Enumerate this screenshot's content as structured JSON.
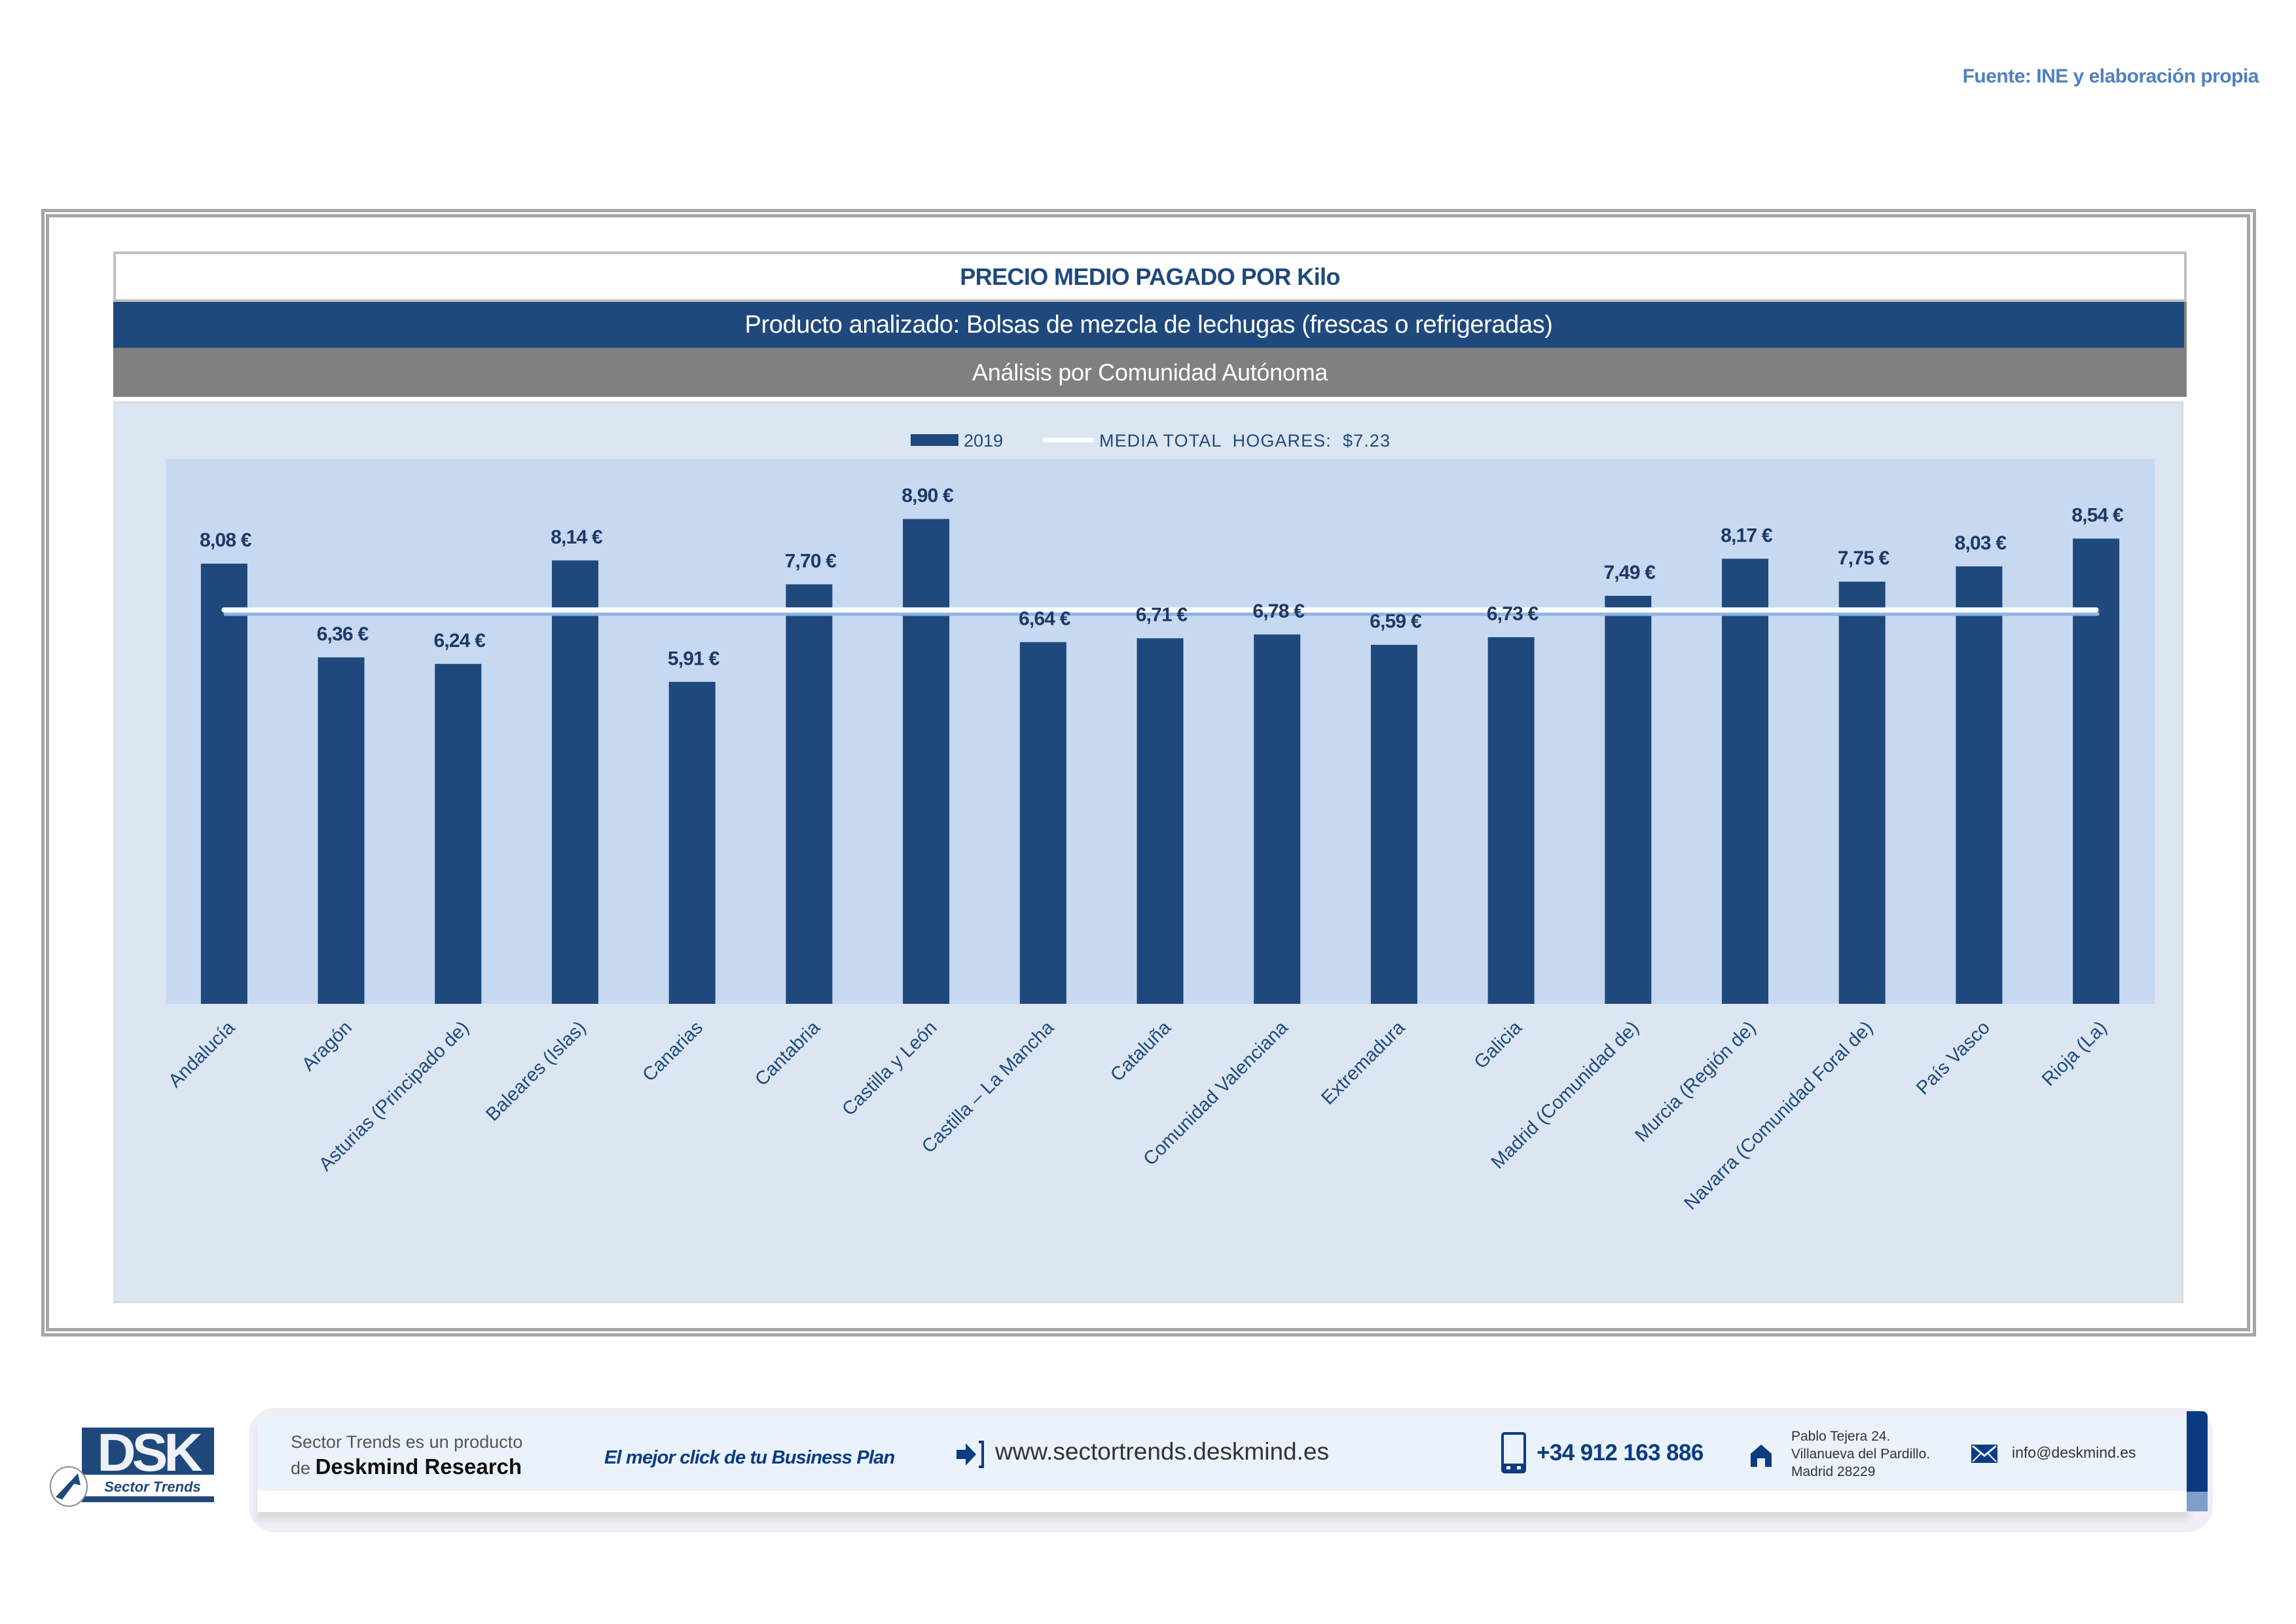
{
  "source": "Fuente: INE y elaboración propia",
  "header": {
    "title": "PRECIO MEDIO PAGADO POR Kilo",
    "product": "Producto analizado: Bolsas de mezcla de lechugas (frescas o refrigeradas)",
    "analysis": "Análisis por Comunidad Autónoma"
  },
  "colors": {
    "bar": "#1f497d",
    "plot_bg": "#c6d9f1",
    "panel_bg": "#dce6f2",
    "mean_line": "#ffffff",
    "mean_shadow": "#8eb4e3",
    "label_text": "#1f3864",
    "axis_text": "#1f497d"
  },
  "chart_data": {
    "type": "bar",
    "title": "PRECIO MEDIO PAGADO POR Kilo",
    "xlabel": "",
    "ylabel": "",
    "ylim": [
      0,
      10
    ],
    "grid": false,
    "legend_position": "top-center",
    "legend": {
      "bar_label": "2019",
      "line_label": "MEDIA TOTAL  HOGARES:  $7.23"
    },
    "categories": [
      "Andalucía",
      "Aragón",
      "Asturias (Principado de)",
      "Baleares (Islas)",
      "Canarias",
      "Cantabria",
      "Castilla y León",
      "Castilla – La Mancha",
      "Cataluña",
      "Comunidad Valenciana",
      "Extremadura",
      "Galicia",
      "Madrid (Comunidad de)",
      "Murcia (Región de)",
      "Navarra (Comunidad Foral de)",
      "País Vasco",
      "Rioja (La)"
    ],
    "series": [
      {
        "name": "2019",
        "type": "bar",
        "values": [
          8.08,
          6.36,
          6.24,
          8.14,
          5.91,
          7.7,
          8.9,
          6.64,
          6.71,
          6.78,
          6.59,
          6.73,
          7.49,
          8.17,
          7.75,
          8.03,
          8.54
        ],
        "data_labels": [
          "8,08 €",
          "6,36 €",
          "6,24 €",
          "8,14 €",
          "5,91 €",
          "7,70 €",
          "8,90 €",
          "6,64 €",
          "6,71 €",
          "6,78 €",
          "6,59 €",
          "6,73 €",
          "7,49 €",
          "8,17 €",
          "7,75 €",
          "8,03 €",
          "8,54 €"
        ]
      },
      {
        "name": "MEDIA TOTAL  HOGARES",
        "type": "line",
        "value": 7.23
      }
    ]
  },
  "footer": {
    "product_line_1": "Sector Trends es un producto",
    "product_line_2_prefix": "de",
    "product_line_2_brand": "Deskmind Research",
    "tagline": "El mejor click de tu Business Plan",
    "url": "www.sectortrends.deskmind.es",
    "phone": "+34 912 163 886",
    "address_lines": [
      "Pablo Tejera 24.",
      "Villanueva del Pardillo.",
      "Madrid 28229"
    ],
    "email": "info@deskmind.es",
    "logo_text": "DSK",
    "logo_subtitle": "Sector Trends",
    "icons": {
      "url": "arrow-into-bracket-icon",
      "phone": "mobile-phone-icon",
      "address": "home-icon",
      "email": "envelope-icon",
      "logo": "cursor-arrow-icon"
    }
  }
}
